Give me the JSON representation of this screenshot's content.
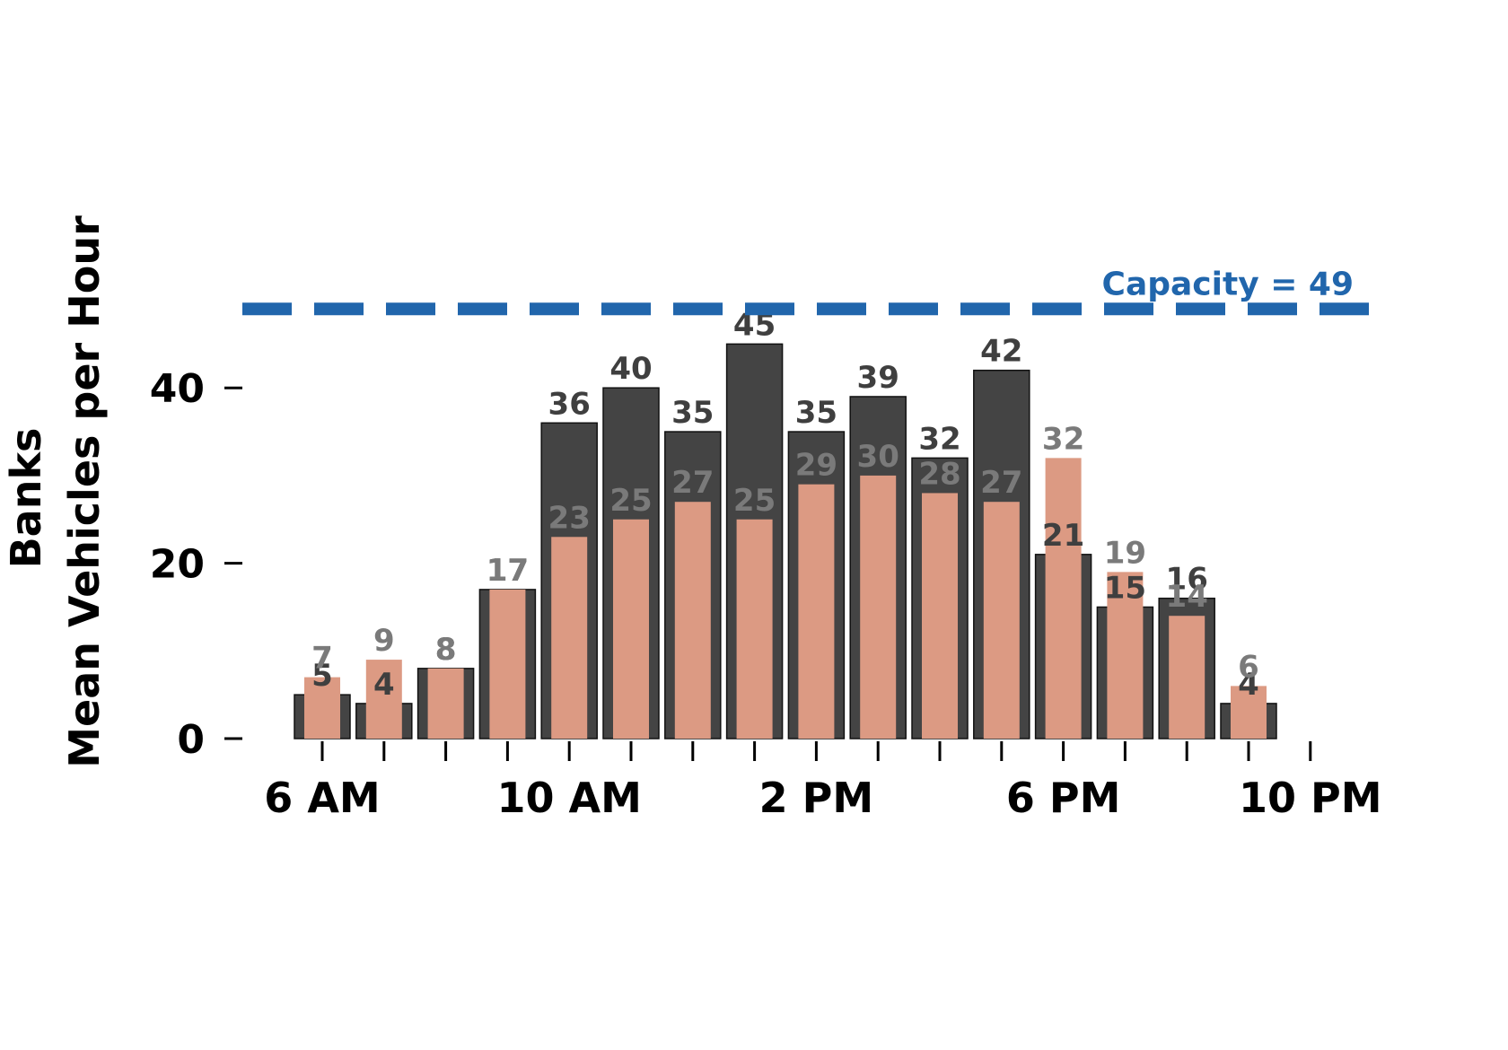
{
  "chart_data": {
    "type": "bar",
    "title": "",
    "ylabel_line1": "Banks",
    "ylabel_line2": "Mean Vehicles per Hour",
    "xlabel": "",
    "ylim": [
      0,
      49
    ],
    "yticks": [
      0,
      20,
      40
    ],
    "x_hours": [
      6,
      7,
      8,
      9,
      10,
      11,
      12,
      13,
      14,
      15,
      16,
      17,
      18,
      19,
      20,
      21,
      22
    ],
    "xtick_labels": [
      {
        "hour": 6,
        "label": "6 AM"
      },
      {
        "hour": 10,
        "label": "10 AM"
      },
      {
        "hour": 14,
        "label": "2 PM"
      },
      {
        "hour": 18,
        "label": "6 PM"
      },
      {
        "hour": 22,
        "label": "10 PM"
      }
    ],
    "categories": [
      "6 AM",
      "7 AM",
      "8 AM",
      "9 AM",
      "10 AM",
      "11 AM",
      "12 PM",
      "1 PM",
      "2 PM",
      "3 PM",
      "4 PM",
      "5 PM",
      "6 PM",
      "7 PM",
      "8 PM",
      "9 PM"
    ],
    "series": [
      {
        "name": "dark",
        "color": "#444444",
        "label_color": "#3f3f3f",
        "values": [
          5,
          4,
          8,
          17,
          36,
          40,
          35,
          45,
          35,
          39,
          32,
          42,
          21,
          15,
          16,
          4
        ]
      },
      {
        "name": "salmon",
        "color": "#dc9a83",
        "label_color": "#7a7a7a",
        "values": [
          7,
          9,
          8,
          17,
          23,
          25,
          27,
          25,
          29,
          30,
          28,
          27,
          32,
          19,
          14,
          6
        ]
      }
    ],
    "reference_line": {
      "value": 49,
      "label": "Capacity = 49",
      "color": "#2166ac",
      "style": "dashed"
    },
    "grid": false,
    "legend": null
  }
}
